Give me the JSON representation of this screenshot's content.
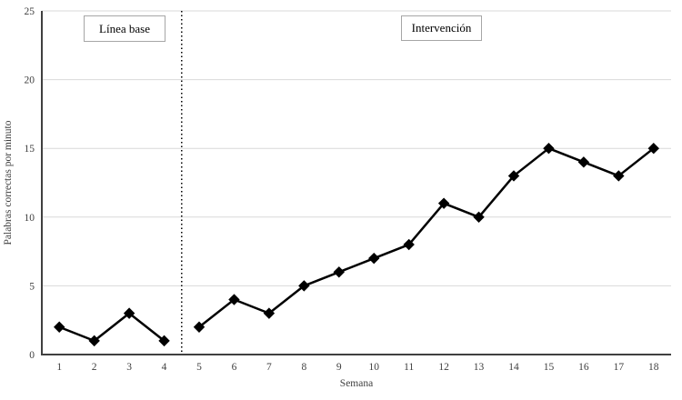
{
  "chart_data": {
    "type": "line",
    "title": "",
    "xlabel": "Semana",
    "ylabel": "Palabras correctas por minuto",
    "categories": [
      1,
      2,
      3,
      4,
      5,
      6,
      7,
      8,
      9,
      10,
      11,
      12,
      13,
      14,
      15,
      16,
      17,
      18
    ],
    "values": [
      2,
      1,
      3,
      1,
      2,
      4,
      3,
      5,
      6,
      7,
      8,
      11,
      10,
      13,
      15,
      14,
      13,
      15
    ],
    "ylim": [
      0,
      25
    ],
    "yticks": [
      0,
      5,
      10,
      15,
      20,
      25
    ],
    "grid": "horizontal",
    "legend": "none",
    "marker": "diamond",
    "phase_change_after_category": 4,
    "phases": [
      {
        "label": "Línea base",
        "weeks": [
          1,
          4
        ]
      },
      {
        "label": "Intervención",
        "weeks": [
          5,
          18
        ]
      }
    ]
  },
  "labels": {
    "baseline": "Línea base",
    "intervention": "Intervención",
    "y_axis_title": "Palabras correctas por minuto",
    "x_axis_title": "Semana"
  },
  "colors": {
    "series": "#000000",
    "marker": "#000000",
    "gridline": "#d9d9d9",
    "axis": "#404040",
    "tick_text": "#404040",
    "separator": "#000000",
    "phase_box_border": "#a6a6a6",
    "background": "#ffffff"
  }
}
